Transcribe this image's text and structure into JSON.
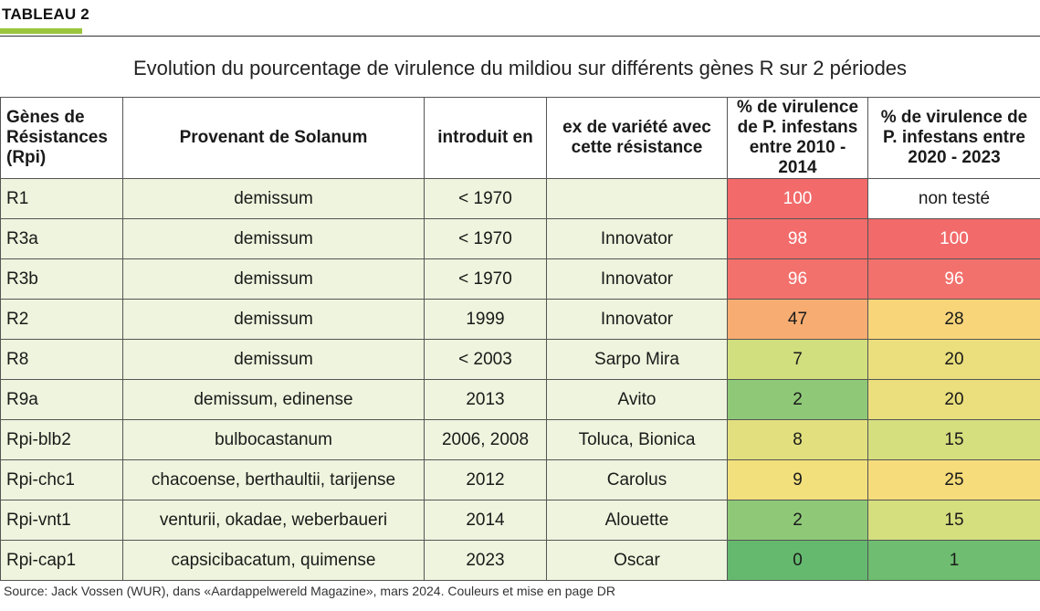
{
  "tag": "TABLEAU 2",
  "title": "Evolution du pourcentage de virulence du mildiou sur différents gènes R sur 2 périodes",
  "headers": {
    "gene": "Gènes de Résistances (Rpi)",
    "source": "Provenant de Solanum",
    "introduced": "introduit en",
    "variety": "ex de variété avec cette résistance",
    "virulence_2010": "% de virulence de P. infestans entre 2010 - 2014",
    "virulence_2020": "% de virulence de P. infestans entre 2020 - 2023"
  },
  "rows": [
    {
      "gene": "R1",
      "source": "demissum",
      "introduced": "< 1970",
      "variety": "",
      "v2010": "100",
      "v2020": "non testé",
      "c2010": "#f26a6a",
      "c2020": "#ffffff",
      "t2010": "#ffffff",
      "t2020": "#1a1a1a"
    },
    {
      "gene": "R3a",
      "source": "demissum",
      "introduced": "< 1970",
      "variety": "Innovator",
      "v2010": "98",
      "v2020": "100",
      "c2010": "#f26c6b",
      "c2020": "#f26a6a",
      "t2010": "#ffffff",
      "t2020": "#ffffff"
    },
    {
      "gene": "R3b",
      "source": "demissum",
      "introduced": "< 1970",
      "variety": "Innovator",
      "v2010": "96",
      "v2020": "96",
      "c2010": "#f3716c",
      "c2020": "#f3716c",
      "t2010": "#ffffff",
      "t2020": "#ffffff"
    },
    {
      "gene": "R2",
      "source": "demissum",
      "introduced": "1999",
      "variety": "Innovator",
      "v2010": "47",
      "v2020": "28",
      "c2010": "#f7ad72",
      "c2020": "#f9d57a",
      "t2010": "#1a1a1a",
      "t2020": "#1a1a1a"
    },
    {
      "gene": "R8",
      "source": "demissum",
      "introduced": "< 2003",
      "variety": "Sarpo Mira",
      "v2010": "7",
      "v2020": "20",
      "c2010": "#d2df7e",
      "c2020": "#eadf7c",
      "t2010": "#1a1a1a",
      "t2020": "#1a1a1a"
    },
    {
      "gene": "R9a",
      "source": "demissum, edinense",
      "introduced": "2013",
      "variety": "Avito",
      "v2010": "2",
      "v2020": "20",
      "c2010": "#8fc978",
      "c2020": "#eadf7c",
      "t2010": "#1a1a1a",
      "t2020": "#1a1a1a"
    },
    {
      "gene": "Rpi-blb2",
      "source": "bulbocastanum",
      "introduced": "2006, 2008",
      "variety": "Toluca, Bionica",
      "v2010": "8",
      "v2020": "15",
      "c2010": "#e2e07e",
      "c2020": "#d6df7e",
      "t2010": "#1a1a1a",
      "t2020": "#1a1a1a"
    },
    {
      "gene": "Rpi-chc1",
      "source": "chacoense, berthaultii, tarijense",
      "introduced": "2012",
      "variety": "Carolus",
      "v2010": "9",
      "v2020": "25",
      "c2010": "#f2e07d",
      "c2020": "#f6dc7b",
      "t2010": "#1a1a1a",
      "t2020": "#1a1a1a"
    },
    {
      "gene": "Rpi-vnt1",
      "source": "venturii, okadae, weberbaueri",
      "introduced": "2014",
      "variety": "Alouette",
      "v2010": "2",
      "v2020": "15",
      "c2010": "#8fc978",
      "c2020": "#d6df7e",
      "t2010": "#1a1a1a",
      "t2020": "#1a1a1a"
    },
    {
      "gene": "Rpi-cap1",
      "source": "capsicibacatum, quimense",
      "introduced": "2023",
      "variety": "Oscar",
      "v2010": "0",
      "v2020": "1",
      "c2010": "#65b96f",
      "c2020": "#6ebd70",
      "t2010": "#1a1a1a",
      "t2020": "#1a1a1a"
    }
  ],
  "footer": "Source: Jack Vossen (WUR), dans «Aardappelwereld Magazine», mars 2024. Couleurs et mise en page DR",
  "colors": {
    "accent": "#9bc53d",
    "row_background": "#eef4dd"
  }
}
